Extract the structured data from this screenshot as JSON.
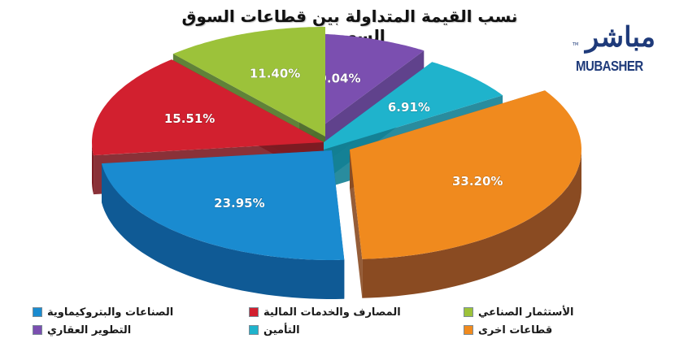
{
  "title": "نسب القيمة المتداولة بين قطاعات السوق السعودي",
  "logo": {
    "arabic": "مباشر",
    "english": "MUBASHER",
    "tm": "TM"
  },
  "chart_data": {
    "type": "pie",
    "style": "3d-exploded",
    "title": "نسب القيمة المتداولة بين قطاعات السوق السعودي",
    "unit": "%",
    "categories": [
      "التطوير العقاري",
      "التأمين",
      "قطاعات اخرى",
      "الصناعات والبتروكيماوية",
      "المصارف والخدمات المالية",
      "الأستثمار الصناعي"
    ],
    "values": [
      9.04,
      6.91,
      33.2,
      23.95,
      15.51,
      11.4
    ],
    "labels": [
      "9.04%",
      "6.91%",
      "33.20%",
      "23.95%",
      "15.51%",
      "11.40%"
    ],
    "colors": [
      "#7b4fb0",
      "#1fb3cc",
      "#f08a1e",
      "#1a8bd0",
      "#d2202f",
      "#9cc23a"
    ],
    "side_colors": [
      "#4f2d80",
      "#127f93",
      "#8a4b22",
      "#0f5a95",
      "#7d1b22",
      "#4f7424"
    ],
    "legend_position": "bottom"
  },
  "legend": {
    "items": [
      {
        "label": "الصناعات والبتروكيماوية",
        "color": "#1a8bd0"
      },
      {
        "label": "المصارف والخدمات المالية",
        "color": "#d2202f"
      },
      {
        "label": "الأستثمار الصناعي",
        "color": "#9cc23a"
      },
      {
        "label": "التطوير العقاري",
        "color": "#7b4fb0"
      },
      {
        "label": "التأمين",
        "color": "#1fb3cc"
      },
      {
        "label": "قطاعات اخرى",
        "color": "#f08a1e"
      }
    ]
  }
}
